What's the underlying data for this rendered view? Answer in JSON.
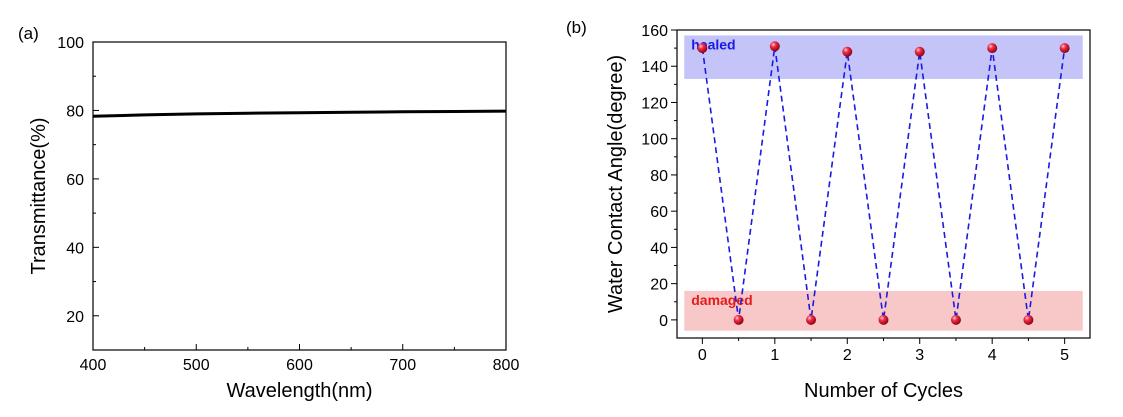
{
  "chart_data": [
    {
      "type": "line",
      "panel_label": "(a)",
      "xlabel": "Wavelength(nm)",
      "ylabel": "Transmittance(%)",
      "xlim": [
        400,
        800
      ],
      "ylim": [
        10,
        100
      ],
      "x_ticks": [
        400,
        500,
        600,
        700,
        800
      ],
      "y_ticks": [
        20,
        40,
        60,
        80,
        100
      ],
      "grid": false,
      "series": [
        {
          "color": "#000000",
          "x": [
            400,
            450,
            500,
            550,
            600,
            650,
            700,
            750,
            800
          ],
          "y": [
            78.3,
            78.7,
            79.0,
            79.2,
            79.3,
            79.5,
            79.6,
            79.7,
            79.8
          ]
        }
      ]
    },
    {
      "type": "scatter",
      "panel_label": "(b)",
      "xlabel": "Number of Cycles",
      "ylabel": "Water Contact Angle(degree)",
      "xlim": [
        -0.35,
        5.35
      ],
      "ylim": [
        -10,
        160
      ],
      "x_ticks": [
        0,
        1,
        2,
        3,
        4,
        5
      ],
      "y_ticks": [
        0,
        20,
        40,
        60,
        80,
        100,
        120,
        140,
        160
      ],
      "grid": false,
      "bands": [
        {
          "label": "healed",
          "y_range": [
            133,
            157
          ],
          "x_range": [
            -0.25,
            5.25
          ],
          "fill_color": "#c4c4f8",
          "label_color": "#1a1ae6"
        },
        {
          "label": "damaged",
          "y_range": [
            -6,
            16
          ],
          "x_range": [
            -0.25,
            5.25
          ],
          "fill_color": "#f8c8c8",
          "label_color": "#e61a1a"
        }
      ],
      "series": [
        {
          "marker_color": "#e0102a",
          "line_color": "#1a1ae6",
          "line_style": "dashed",
          "x": [
            0,
            0.5,
            1,
            1.5,
            2,
            2.5,
            3,
            3.5,
            4,
            4.5,
            5
          ],
          "y": [
            150,
            0,
            151,
            0,
            148,
            0,
            148,
            0,
            150,
            0,
            150
          ]
        }
      ]
    }
  ]
}
